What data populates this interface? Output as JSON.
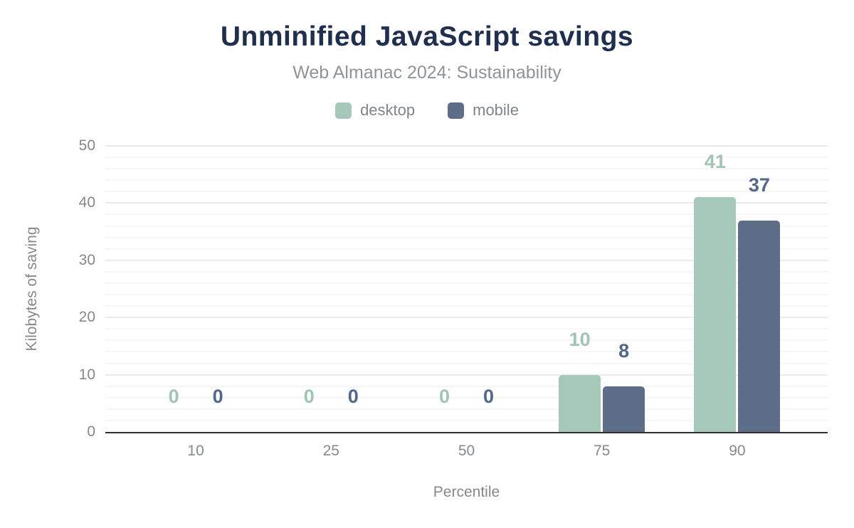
{
  "chart": {
    "title": "Unminified JavaScript savings",
    "subtitle": "Web Almanac 2024: Sustainability"
  },
  "chart_data": {
    "type": "bar",
    "title": "Unminified JavaScript savings",
    "subtitle": "Web Almanac 2024: Sustainability",
    "categories": [
      "10",
      "25",
      "50",
      "75",
      "90"
    ],
    "series": [
      {
        "name": "desktop",
        "color": "#a5c8b8",
        "label_color": "#a0c5b2",
        "values": [
          0,
          0,
          0,
          10,
          41
        ]
      },
      {
        "name": "mobile",
        "color": "#5f6e88",
        "label_color": "#546689",
        "values": [
          0,
          0,
          0,
          8,
          37
        ]
      }
    ],
    "xlabel": "Percentile",
    "ylabel": "Kilobytes of saving",
    "ylim": [
      0,
      50
    ],
    "yticks": [
      0,
      10,
      20,
      30,
      40,
      50
    ],
    "grid": {
      "minor_step": 2,
      "major_step": 10,
      "enabled": true
    },
    "legend_position": "top",
    "value_labels": true
  },
  "colors": {
    "background": "#ffffff",
    "title": "#202f4e",
    "subtitle": "#8d949b",
    "axis_text": "#84898f",
    "legend_text": "#7d848b",
    "axis_line": "#303030",
    "grid_minor": "#f6f6f6",
    "grid_major": "#ebebeb"
  }
}
